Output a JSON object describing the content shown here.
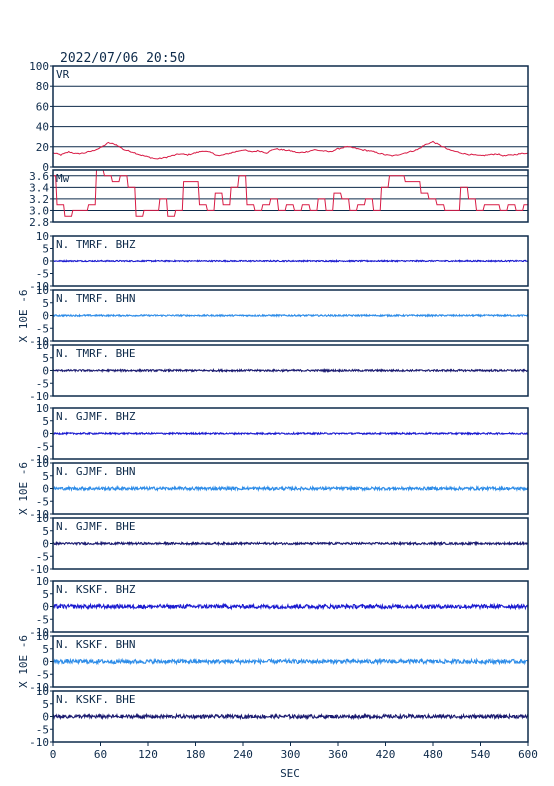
{
  "header": {
    "timestamp": "2022/07/06 20:50"
  },
  "ylabel_seismo": "X 10E -6",
  "colors": {
    "frame": "#0d2a4a",
    "grid": "#0d2a4a",
    "vr": "#d81b45",
    "mw": "#d81b45",
    "bhz": "#1a1ad0",
    "bhn": "#2d8ce8",
    "bhe": "#1a1a70"
  },
  "chart_data": [
    {
      "type": "line",
      "label": "VR",
      "ylim": [
        0,
        100
      ],
      "yticks": [
        "0",
        "20",
        "40",
        "60",
        "80",
        "100"
      ],
      "grid": true,
      "xlim": [
        0,
        600
      ],
      "series": [
        {
          "x": [
            0,
            10,
            20,
            30,
            40,
            50,
            60,
            70,
            80,
            90,
            100,
            110,
            120,
            130,
            140,
            150,
            160,
            170,
            180,
            190,
            200,
            210,
            220,
            230,
            240,
            250,
            260,
            270,
            280,
            290,
            300,
            310,
            320,
            330,
            340,
            350,
            360,
            370,
            380,
            390,
            400,
            410,
            420,
            430,
            440,
            450,
            460,
            470,
            480,
            490,
            500,
            510,
            520,
            530,
            540,
            550,
            560,
            570,
            580,
            590,
            600
          ],
          "y": [
            14,
            12,
            15,
            13,
            14,
            16,
            19,
            24,
            22,
            17,
            15,
            12,
            10,
            8,
            9,
            11,
            13,
            12,
            14,
            16,
            14,
            11,
            13,
            15,
            17,
            15,
            16,
            14,
            18,
            17,
            16,
            14,
            15,
            17,
            16,
            15,
            18,
            20,
            19,
            17,
            16,
            14,
            12,
            11,
            13,
            15,
            17,
            22,
            25,
            21,
            17,
            15,
            13,
            12,
            11,
            12,
            13,
            11,
            12,
            13,
            14
          ]
        }
      ]
    },
    {
      "type": "line",
      "label": "Mw",
      "ylim": [
        2.8,
        3.7
      ],
      "yticks": [
        "2.8",
        "3.0",
        "3.2",
        "3.4",
        "3.6"
      ],
      "grid": true,
      "xlim": [
        0,
        600
      ],
      "series": [
        {
          "x": [
            0,
            10,
            20,
            30,
            40,
            50,
            60,
            70,
            80,
            90,
            100,
            110,
            120,
            130,
            140,
            150,
            160,
            170,
            180,
            190,
            200,
            210,
            220,
            230,
            240,
            250,
            260,
            270,
            280,
            290,
            300,
            310,
            320,
            330,
            340,
            350,
            360,
            370,
            380,
            390,
            400,
            410,
            420,
            430,
            440,
            450,
            460,
            470,
            480,
            490,
            500,
            510,
            520,
            530,
            540,
            550,
            560,
            570,
            580,
            590,
            600
          ],
          "y": [
            3.6,
            3.1,
            2.9,
            3.0,
            3.0,
            3.1,
            3.7,
            3.6,
            3.5,
            3.6,
            3.4,
            2.9,
            3.0,
            3.0,
            3.2,
            2.9,
            3.0,
            3.5,
            3.5,
            3.1,
            3.0,
            3.3,
            3.1,
            3.4,
            3.6,
            3.1,
            3.0,
            3.1,
            3.2,
            3.0,
            3.1,
            3.0,
            3.1,
            3.0,
            3.2,
            3.0,
            3.3,
            3.2,
            3.0,
            3.1,
            3.2,
            3.0,
            3.4,
            3.6,
            3.6,
            3.5,
            3.5,
            3.3,
            3.2,
            3.1,
            3.0,
            3.0,
            3.4,
            3.2,
            3.0,
            3.1,
            3.1,
            3.0,
            3.1,
            3.0,
            3.1
          ]
        }
      ]
    },
    {
      "type": "line",
      "label": "N. TMRF. BHZ",
      "ylim": [
        -10,
        10
      ],
      "yticks": [
        "-10",
        "-5",
        "0",
        "5",
        "10"
      ],
      "xlim": [
        0,
        600
      ],
      "color": "bhz",
      "noise": 0.25
    },
    {
      "type": "line",
      "label": "N. TMRF. BHN",
      "ylim": [
        -10,
        10
      ],
      "yticks": [
        "-10",
        "-5",
        "0",
        "5",
        "10"
      ],
      "xlim": [
        0,
        600
      ],
      "color": "bhn",
      "noise": 0.3
    },
    {
      "type": "line",
      "label": "N. TMRF. BHE",
      "ylim": [
        -10,
        10
      ],
      "yticks": [
        "-10",
        "-5",
        "0",
        "5",
        "10"
      ],
      "xlim": [
        0,
        600
      ],
      "color": "bhe",
      "noise": 0.35
    },
    {
      "type": "line",
      "label": "N. GJMF. BHZ",
      "ylim": [
        -10,
        10
      ],
      "yticks": [
        "-10",
        "-5",
        "0",
        "5",
        "10"
      ],
      "xlim": [
        0,
        600
      ],
      "color": "bhz",
      "noise": 0.3
    },
    {
      "type": "line",
      "label": "N. GJMF. BHN",
      "ylim": [
        -10,
        10
      ],
      "yticks": [
        "-10",
        "-5",
        "0",
        "5",
        "10"
      ],
      "xlim": [
        0,
        600
      ],
      "color": "bhn",
      "noise": 0.6
    },
    {
      "type": "line",
      "label": "N. GJMF. BHE",
      "ylim": [
        -10,
        10
      ],
      "yticks": [
        "-10",
        "-5",
        "0",
        "5",
        "10"
      ],
      "xlim": [
        0,
        600
      ],
      "color": "bhe",
      "noise": 0.4
    },
    {
      "type": "line",
      "label": "N. KSKF. BHZ",
      "ylim": [
        -10,
        10
      ],
      "yticks": [
        "-10",
        "-5",
        "0",
        "5",
        "10"
      ],
      "xlim": [
        0,
        600
      ],
      "color": "bhz",
      "noise": 0.8
    },
    {
      "type": "line",
      "label": "N. KSKF. BHN",
      "ylim": [
        -10,
        10
      ],
      "yticks": [
        "-10",
        "-5",
        "0",
        "5",
        "10"
      ],
      "xlim": [
        0,
        600
      ],
      "color": "bhn",
      "noise": 0.8
    },
    {
      "type": "line",
      "label": "N. KSKF. BHE",
      "ylim": [
        -10,
        10
      ],
      "yticks": [
        "-10",
        "-5",
        "0",
        "5",
        "10"
      ],
      "xlim": [
        0,
        600
      ],
      "color": "bhe",
      "noise": 0.7
    }
  ],
  "xaxis": {
    "label": "SEC",
    "ticks": [
      "0",
      "60",
      "120",
      "180",
      "240",
      "300",
      "360",
      "420",
      "480",
      "540",
      "600"
    ]
  }
}
